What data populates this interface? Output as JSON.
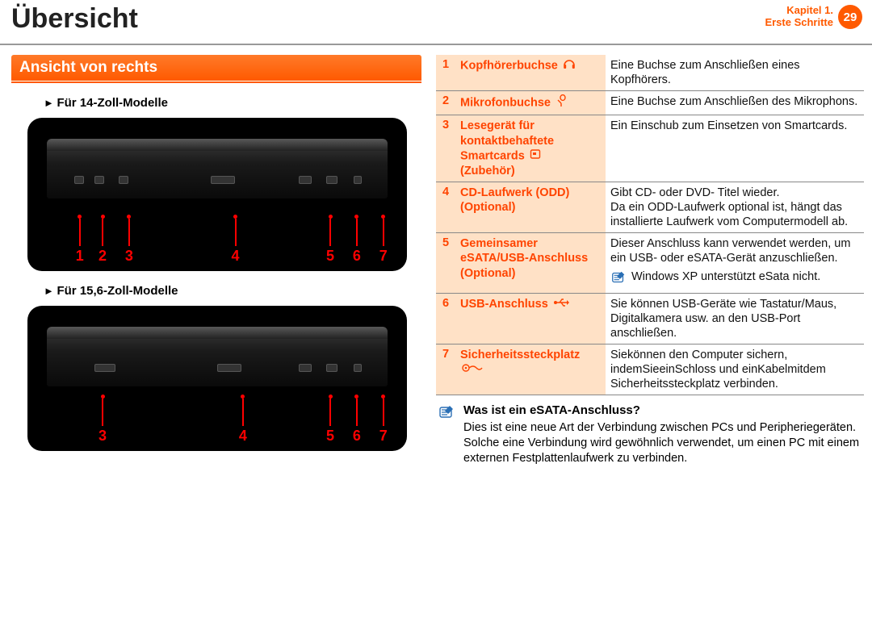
{
  "colors": {
    "accent": "#ff5a00",
    "accent_light_bg": "#ffe1c6",
    "callout_red": "#ff0000",
    "text": "#111111",
    "header_rule": "#999999"
  },
  "header": {
    "title": "Übersicht",
    "chapter_line1": "Kapitel 1.",
    "chapter_line2": "Erste Schritte",
    "page_number": "29"
  },
  "section": {
    "heading": "Ansicht von rechts"
  },
  "models": {
    "m14": {
      "heading": "Für 14-Zoll-Modelle",
      "callouts": [
        {
          "n": "1",
          "left_pct": 14
        },
        {
          "n": "2",
          "left_pct": 20
        },
        {
          "n": "3",
          "left_pct": 27
        },
        {
          "n": "4",
          "left_pct": 55
        },
        {
          "n": "5",
          "left_pct": 80
        },
        {
          "n": "6",
          "left_pct": 87
        },
        {
          "n": "7",
          "left_pct": 94
        }
      ]
    },
    "m15": {
      "heading": "Für 15,6-Zoll-Modelle",
      "callouts": [
        {
          "n": "3",
          "left_pct": 20
        },
        {
          "n": "4",
          "left_pct": 57
        },
        {
          "n": "5",
          "left_pct": 80
        },
        {
          "n": "6",
          "left_pct": 87
        },
        {
          "n": "7",
          "left_pct": 94
        }
      ]
    }
  },
  "ports": [
    {
      "n": "1",
      "label": "Kopfhörerbuchse",
      "icon": "headphone",
      "desc": "Eine Buchse zum Anschließen eines Kopfhörers."
    },
    {
      "n": "2",
      "label": "Mikrofonbuchse",
      "icon": "mic",
      "desc": "Eine Buchse zum Anschließen des Mikrophons."
    },
    {
      "n": "3",
      "label": "Lesegerät für kontaktbehaftete Smartcards",
      "label_suffix": "(Zubehör)",
      "icon": "smartcard",
      "desc": "Ein Einschub zum Einsetzen von Smartcards."
    },
    {
      "n": "4",
      "label": "CD-Laufwerk (ODD)",
      "label_suffix": "(Optional)",
      "icon": "",
      "desc": "Gibt CD- oder DVD- Titel wieder.\nDa ein ODD-Laufwerk optional ist, hängt das installierte Laufwerk vom Computermodell ab."
    },
    {
      "n": "5",
      "label": "Gemeinsamer eSATA/USB-Anschluss",
      "label_suffix": "(Optional)",
      "icon": "",
      "desc": "Dieser Anschluss kann verwendet werden, um ein USB- oder eSATA-Gerät anzuschließen.",
      "note": "Windows XP unterstützt eSata nicht."
    },
    {
      "n": "6",
      "label": "USB-Anschluss",
      "icon": "usb",
      "desc": "Sie können USB-Geräte wie Tastatur/Maus, Digitalkamera usw. an den USB-Port anschließen."
    },
    {
      "n": "7",
      "label": "Sicherheitssteckplatz",
      "icon": "lock",
      "desc": "Siekönnen den Computer sichern, indemSieeinSchloss und einKabelmitdem Sicherheitssteckplatz verbinden."
    }
  ],
  "info": {
    "title": "Was ist ein eSATA-Anschluss?",
    "text": "Dies ist eine neue Art der Verbindung zwischen PCs und Peripheriegeräten. Solche eine Verbindung wird gewöhnlich verwendet, um einen PC mit einem externen Festplattenlaufwerk zu verbinden."
  }
}
